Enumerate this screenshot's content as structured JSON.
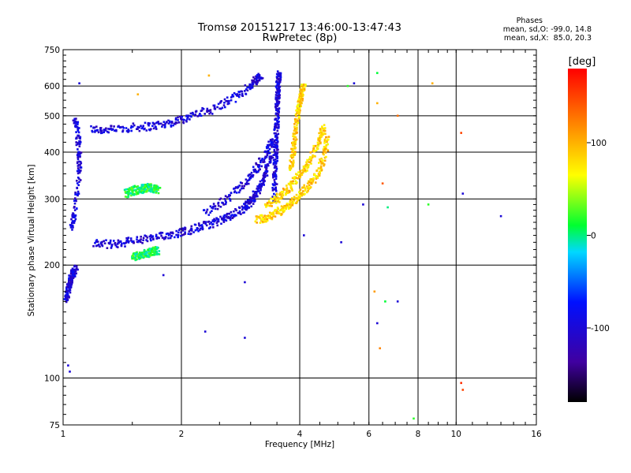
{
  "chart_data": {
    "type": "scatter",
    "title": "Tromsø 20151217 13:46:00-13:47:43",
    "subtitle": "RwPretec (8p)",
    "xlabel": "Frequency [MHz]",
    "ylabel": "Stationary phase Virtual Height [km]",
    "x_scale": "log",
    "y_scale": "log",
    "xlim": [
      1,
      16
    ],
    "ylim": [
      75,
      750
    ],
    "x_ticks": [
      1,
      2,
      4,
      6,
      8,
      10,
      16
    ],
    "x_tick_labels": [
      "1",
      "2",
      "4",
      "6",
      "8",
      "10",
      "16"
    ],
    "y_ticks": [
      75,
      100,
      200,
      300,
      400,
      500,
      600,
      750
    ],
    "y_tick_labels": [
      "75",
      "100",
      "200",
      "300",
      "400",
      "500",
      "600",
      "750"
    ],
    "grid": true,
    "stats": {
      "heading": "Phases",
      "line0": "mean, sd,O: -99.0, 14.8",
      "line1": "mean, sd,X:  85.0, 20.3"
    },
    "colorbar": {
      "unit": "[deg]",
      "range": [
        -180,
        180
      ],
      "ticks": [
        100,
        0,
        -100
      ],
      "tick_labels": [
        "100",
        "0",
        "-100"
      ]
    },
    "series": [
      {
        "mode": "O",
        "phase": -99,
        "traces": [
          {
            "x": [
              1.18,
              1.3,
              1.5,
              1.7,
              1.9,
              2.1,
              2.4,
              2.7,
              3.0,
              3.1,
              3.2
            ],
            "y": [
              460,
              458,
              465,
              470,
              480,
              498,
              520,
              555,
              600,
              625,
              640
            ]
          },
          {
            "x": [
              1.2,
              1.35,
              1.5,
              1.7,
              1.9,
              2.1,
              2.3,
              2.5,
              2.7,
              2.9,
              3.0,
              3.1,
              3.2,
              3.3,
              3.4
            ],
            "y": [
              228,
              227,
              232,
              236,
              242,
              248,
              255,
              262,
              272,
              285,
              295,
              310,
              330,
              360,
              400
            ]
          },
          {
            "x": [
              3.45,
              3.46,
              3.47,
              3.48,
              3.49,
              3.5,
              3.51,
              3.52,
              3.53,
              3.54
            ],
            "y": [
              300,
              340,
              380,
              420,
              460,
              500,
              540,
              580,
              620,
              645
            ]
          },
          {
            "x": [
              2.3,
              2.6,
              2.9,
              3.1,
              3.3,
              3.45
            ],
            "y": [
              275,
              300,
              330,
              360,
              400,
              440
            ]
          },
          {
            "x": [
              1.02,
              1.03,
              1.04,
              1.05,
              1.06,
              1.08
            ],
            "y": [
              160,
              170,
              180,
              185,
              190,
              195
            ]
          },
          {
            "x": [
              1.05,
              1.07,
              1.1,
              1.1,
              1.09,
              1.07
            ],
            "y": [
              250,
              280,
              350,
              400,
              450,
              500
            ]
          }
        ]
      },
      {
        "mode": "X",
        "phase": 85,
        "traces": [
          {
            "x": [
              3.1,
              3.3,
              3.5,
              3.7,
              3.9,
              4.1,
              4.3,
              4.5,
              4.65,
              4.7
            ],
            "y": [
              265,
              268,
              275,
              285,
              298,
              315,
              335,
              360,
              400,
              440
            ]
          },
          {
            "x": [
              3.8,
              3.85,
              3.9,
              3.95,
              4.0,
              4.05,
              4.1
            ],
            "y": [
              360,
              400,
              450,
              500,
              540,
              580,
              600
            ]
          },
          {
            "x": [
              3.3,
              3.5,
              3.7,
              3.9,
              4.1,
              4.3,
              4.5,
              4.6
            ],
            "y": [
              290,
              300,
              315,
              335,
              360,
              390,
              430,
              470
            ]
          }
        ]
      },
      {
        "mode": "other",
        "phase": 10,
        "traces": [
          {
            "x": [
              1.45,
              1.5,
              1.55,
              1.6,
              1.65,
              1.7,
              1.75
            ],
            "y": [
              310,
              315,
              318,
              320,
              322,
              320,
              318
            ]
          },
          {
            "x": [
              1.5,
              1.55,
              1.6,
              1.65,
              1.7,
              1.75
            ],
            "y": [
              210,
              212,
              215,
              215,
              218,
              218
            ]
          }
        ]
      }
    ],
    "scattered_points": [
      {
        "x": 6.3,
        "y": 650,
        "phase": 10
      },
      {
        "x": 6.3,
        "y": 540,
        "phase": 100
      },
      {
        "x": 7.1,
        "y": 500,
        "phase": 130
      },
      {
        "x": 8.7,
        "y": 610,
        "phase": 100
      },
      {
        "x": 10.3,
        "y": 450,
        "phase": 150
      },
      {
        "x": 6.5,
        "y": 330,
        "phase": 140
      },
      {
        "x": 6.2,
        "y": 170,
        "phase": 110
      },
      {
        "x": 6.6,
        "y": 160,
        "phase": 10
      },
      {
        "x": 7.1,
        "y": 160,
        "phase": -100
      },
      {
        "x": 6.3,
        "y": 140,
        "phase": -100
      },
      {
        "x": 6.4,
        "y": 120,
        "phase": 120
      },
      {
        "x": 10.3,
        "y": 97,
        "phase": 160
      },
      {
        "x": 10.4,
        "y": 93,
        "phase": 150
      },
      {
        "x": 13.0,
        "y": 270,
        "phase": -100
      },
      {
        "x": 10.4,
        "y": 310,
        "phase": -100
      },
      {
        "x": 8.5,
        "y": 290,
        "phase": 20
      },
      {
        "x": 7.8,
        "y": 78,
        "phase": 20
      },
      {
        "x": 5.8,
        "y": 290,
        "phase": -100
      },
      {
        "x": 6.7,
        "y": 285,
        "phase": 0
      },
      {
        "x": 5.1,
        "y": 230,
        "phase": -100
      },
      {
        "x": 2.9,
        "y": 180,
        "phase": -100
      },
      {
        "x": 2.9,
        "y": 128,
        "phase": -100
      },
      {
        "x": 2.3,
        "y": 133,
        "phase": -100
      },
      {
        "x": 1.8,
        "y": 188,
        "phase": -100
      },
      {
        "x": 1.03,
        "y": 108,
        "phase": -100
      },
      {
        "x": 1.04,
        "y": 104,
        "phase": -100
      },
      {
        "x": 4.1,
        "y": 240,
        "phase": -100
      },
      {
        "x": 5.5,
        "y": 610,
        "phase": -100
      },
      {
        "x": 5.3,
        "y": 600,
        "phase": 20
      },
      {
        "x": 2.35,
        "y": 640,
        "phase": 100
      },
      {
        "x": 1.55,
        "y": 570,
        "phase": 100
      },
      {
        "x": 1.1,
        "y": 610,
        "phase": -100
      }
    ]
  }
}
